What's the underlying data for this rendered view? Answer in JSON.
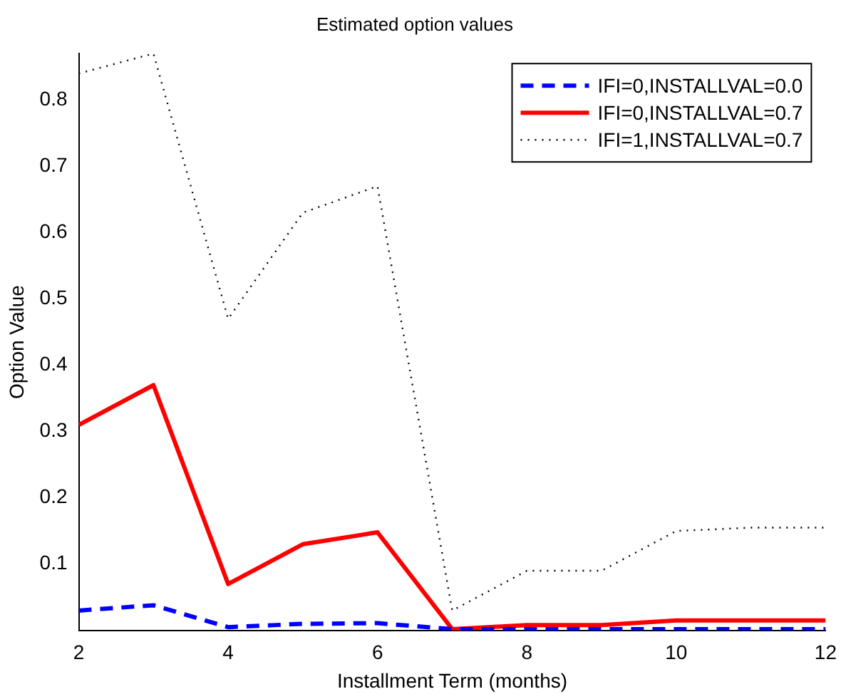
{
  "chart_data": {
    "type": "line",
    "title": "Estimated option values",
    "xlabel": "Installment Term (months)",
    "ylabel": "Option Value",
    "x": [
      2,
      3,
      4,
      5,
      6,
      7,
      8,
      9,
      10,
      11,
      12
    ],
    "series": [
      {
        "name": "IFI=0,INSTALLVAL=0.0",
        "color": "#0000ff",
        "line_style": "dashed",
        "values": [
          0.03,
          0.038,
          0.005,
          0.01,
          0.011,
          0.002,
          0.002,
          0.002,
          0.002,
          0.002,
          0.002
        ]
      },
      {
        "name": "IFI=0,INSTALLVAL=0.7",
        "color": "#ff0000",
        "line_style": "solid",
        "values": [
          0.31,
          0.37,
          0.07,
          0.13,
          0.148,
          0.002,
          0.008,
          0.008,
          0.015,
          0.015,
          0.015
        ]
      },
      {
        "name": "IFI=1,INSTALLVAL=0.7",
        "color": "#000000",
        "line_style": "dotted",
        "values": [
          0.84,
          0.87,
          0.47,
          0.63,
          0.67,
          0.03,
          0.09,
          0.09,
          0.15,
          0.155,
          0.155
        ]
      }
    ],
    "xlim": [
      2,
      12
    ],
    "xticks": [
      2,
      4,
      6,
      8,
      10,
      12
    ],
    "ylim": [
      0,
      0.87
    ],
    "yticks": [
      0.1,
      0.2,
      0.3,
      0.4,
      0.5,
      0.6,
      0.7,
      0.8
    ],
    "grid": false,
    "legend": "top right",
    "marker": "none"
  }
}
